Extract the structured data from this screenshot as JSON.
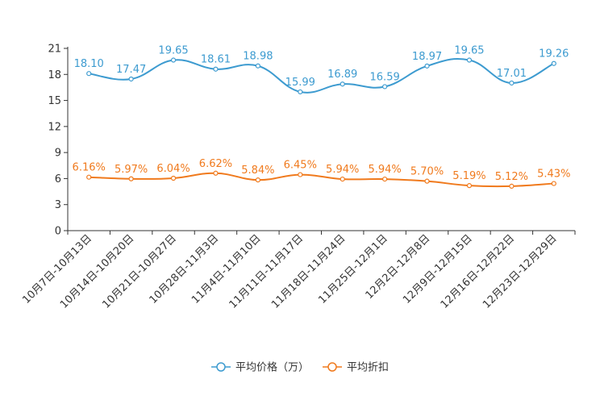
{
  "chart_data": {
    "type": "line",
    "categories": [
      "10月7日-10月13日",
      "10月14日-10月20日",
      "10月21日-10月27日",
      "10月28日-11月3日",
      "11月4日-11月10日",
      "11月11日-11月17日",
      "11月18日-11月24日",
      "11月25日-12月1日",
      "12月2日-12月8日",
      "12月9日-12月15日",
      "12月16日-12月22日",
      "12月23日-12月29日"
    ],
    "series": [
      {
        "name": "平均价格（万）",
        "color": "#3d9bd0",
        "values": [
          18.1,
          17.47,
          19.65,
          18.61,
          18.98,
          15.99,
          16.89,
          16.59,
          18.97,
          19.65,
          17.01,
          19.26
        ],
        "labels": [
          "18.10",
          "17.47",
          "19.65",
          "18.61",
          "18.98",
          "15.99",
          "16.89",
          "16.59",
          "18.97",
          "19.65",
          "17.01",
          "19.26"
        ]
      },
      {
        "name": "平均折扣",
        "color": "#f07a1d",
        "values": [
          6.16,
          5.97,
          6.04,
          6.62,
          5.84,
          6.45,
          5.94,
          5.94,
          5.7,
          5.19,
          5.12,
          5.43
        ],
        "labels": [
          "6.16%",
          "5.97%",
          "6.04%",
          "6.62%",
          "5.84%",
          "6.45%",
          "5.94%",
          "5.94%",
          "5.70%",
          "5.19%",
          "5.12%",
          "5.43%"
        ]
      }
    ],
    "yticks": [
      "0",
      "3",
      "6",
      "9",
      "12",
      "15",
      "18",
      "21"
    ],
    "ylim": [
      0,
      21
    ],
    "title": "",
    "xlabel": "",
    "ylabel": "",
    "legend_position": "bottom-center"
  }
}
